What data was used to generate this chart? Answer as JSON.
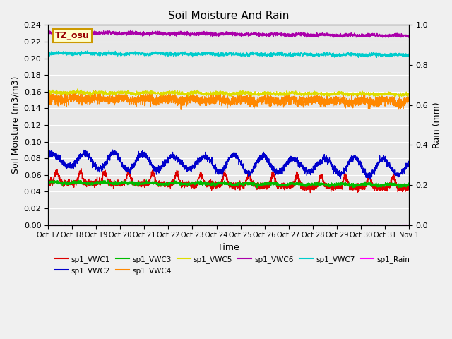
{
  "title": "Soil Moisture And Rain",
  "xlabel": "Time",
  "ylabel_left": "Soil Moisture (m3/m3)",
  "ylabel_right": "Rain (mm)",
  "ylim_left": [
    0.0,
    0.24
  ],
  "ylim_right": [
    0.0,
    1.0
  ],
  "background_color": "#e8e8e8",
  "station_label": "TZ_osu",
  "series_info": [
    {
      "name": "sp1_VWC1",
      "color": "#dd0000",
      "base": 0.051,
      "noise": 0.002,
      "spike_amp": 0.014,
      "trend": -0.007,
      "has_spikes": true
    },
    {
      "name": "sp1_VWC2",
      "color": "#0000cc",
      "base": 0.078,
      "noise": 0.002,
      "spike_amp": 0.006,
      "trend": -0.009,
      "has_spikes": false
    },
    {
      "name": "sp1_VWC3",
      "color": "#00bb00",
      "base": 0.051,
      "noise": 0.001,
      "spike_amp": 0.003,
      "trend": -0.003,
      "has_spikes": false
    },
    {
      "name": "sp1_VWC4",
      "color": "#ff8800",
      "base": 0.152,
      "noise": 0.003,
      "spike_amp": 0.005,
      "trend": -0.004,
      "has_spikes": false
    },
    {
      "name": "sp1_VWC5",
      "color": "#dddd00",
      "base": 0.159,
      "noise": 0.001,
      "spike_amp": 0.002,
      "trend": -0.002,
      "has_spikes": false
    },
    {
      "name": "sp1_VWC6",
      "color": "#aa00aa",
      "base": 0.231,
      "noise": 0.001,
      "spike_amp": 0.002,
      "trend": -0.004,
      "has_spikes": false
    },
    {
      "name": "sp1_VWC7",
      "color": "#00cccc",
      "base": 0.206,
      "noise": 0.001,
      "spike_amp": 0.002,
      "trend": -0.002,
      "has_spikes": false
    },
    {
      "name": "sp1_Rain",
      "color": "#ff00ff",
      "base": 0.001,
      "noise": 0.0002,
      "spike_amp": 0.0,
      "trend": 0.0,
      "has_spikes": false
    }
  ],
  "xtick_labels": [
    "Oct 17",
    "Oct 18",
    "Oct 19",
    "Oct 20",
    "Oct 21",
    "Oct 22",
    "Oct 23",
    "Oct 24",
    "Oct 25",
    "Oct 26",
    "Oct 27",
    "Oct 28",
    "Oct 29",
    "Oct 30",
    "Oct 31",
    "Nov 1"
  ],
  "n_points": 2880,
  "legend_row1": [
    "sp1_VWC1",
    "sp1_VWC2",
    "sp1_VWC3",
    "sp1_VWC4",
    "sp1_VWC5",
    "sp1_VWC6"
  ],
  "legend_row2": [
    "sp1_VWC7",
    "sp1_Rain"
  ]
}
